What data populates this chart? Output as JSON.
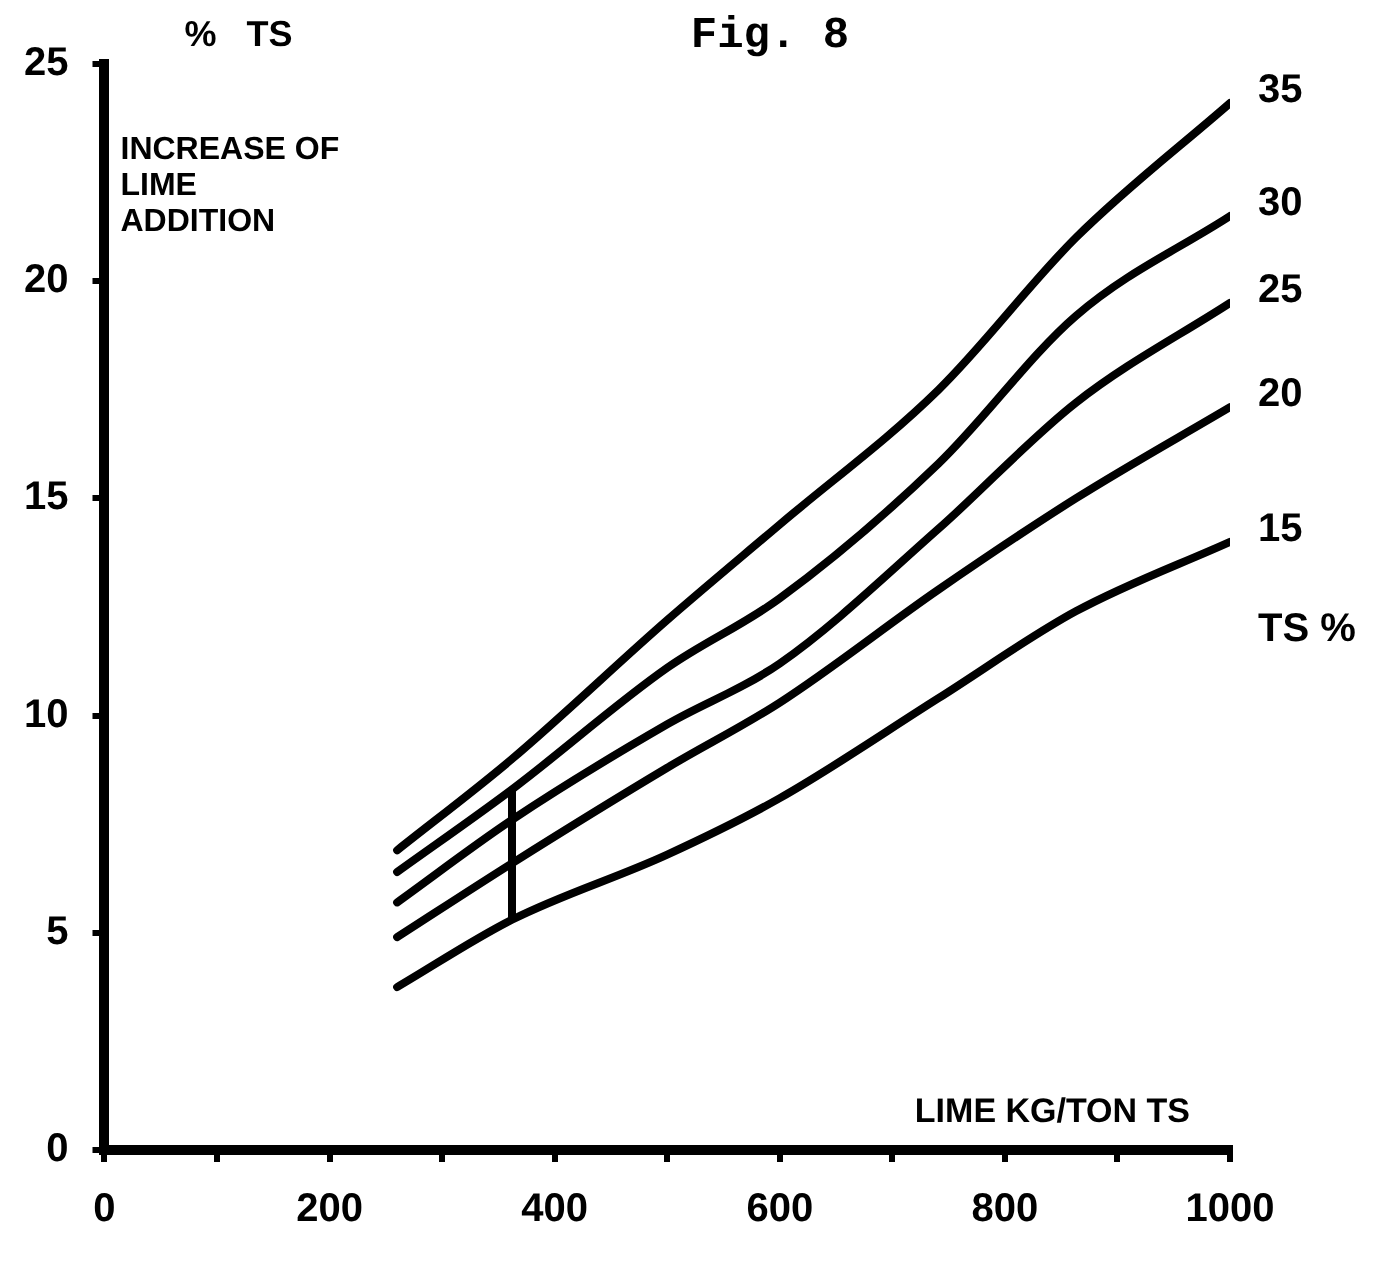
{
  "chart_data": {
    "type": "line",
    "title": "Fig. 8",
    "ylabel": "%   TS",
    "xlabel": "LIME KG/TON TS",
    "legend_title": "TS %",
    "annotations": [
      "INCREASE OF LIME ADDITION"
    ],
    "x": [
      260,
      362,
      500,
      600,
      741,
      863,
      1000
    ],
    "series": [
      {
        "name": "35",
        "color": "#000000",
        "values": [
          6.9,
          9.0,
          12.2,
          14.4,
          17.5,
          21.0,
          24.1
        ]
      },
      {
        "name": "30",
        "color": "#000000",
        "values": [
          6.4,
          8.3,
          11.1,
          12.7,
          15.8,
          19.2,
          21.5
        ]
      },
      {
        "name": "25",
        "color": "#000000",
        "values": [
          5.7,
          7.6,
          9.8,
          11.2,
          14.3,
          17.2,
          19.5
        ]
      },
      {
        "name": "20",
        "color": "#000000",
        "values": [
          4.9,
          6.6,
          8.8,
          10.3,
          12.9,
          15.0,
          17.1
        ]
      },
      {
        "name": "15",
        "color": "#000000",
        "values": [
          3.75,
          5.3,
          6.8,
          8.1,
          10.4,
          12.4,
          14.0
        ]
      }
    ],
    "xlim": [
      0,
      1000
    ],
    "ylim": [
      0,
      25
    ],
    "xticks": [
      0,
      {
        "value": 100,
        "label": null
      },
      200,
      {
        "value": 300,
        "label": null
      },
      400,
      {
        "value": 500,
        "label": null
      },
      600,
      {
        "value": 700,
        "label": null
      },
      800,
      {
        "value": 900,
        "label": null
      },
      1000
    ],
    "yticks": [
      0,
      5,
      10,
      15,
      20,
      25
    ],
    "grid": false,
    "marker": "none",
    "line_style": "solid"
  }
}
